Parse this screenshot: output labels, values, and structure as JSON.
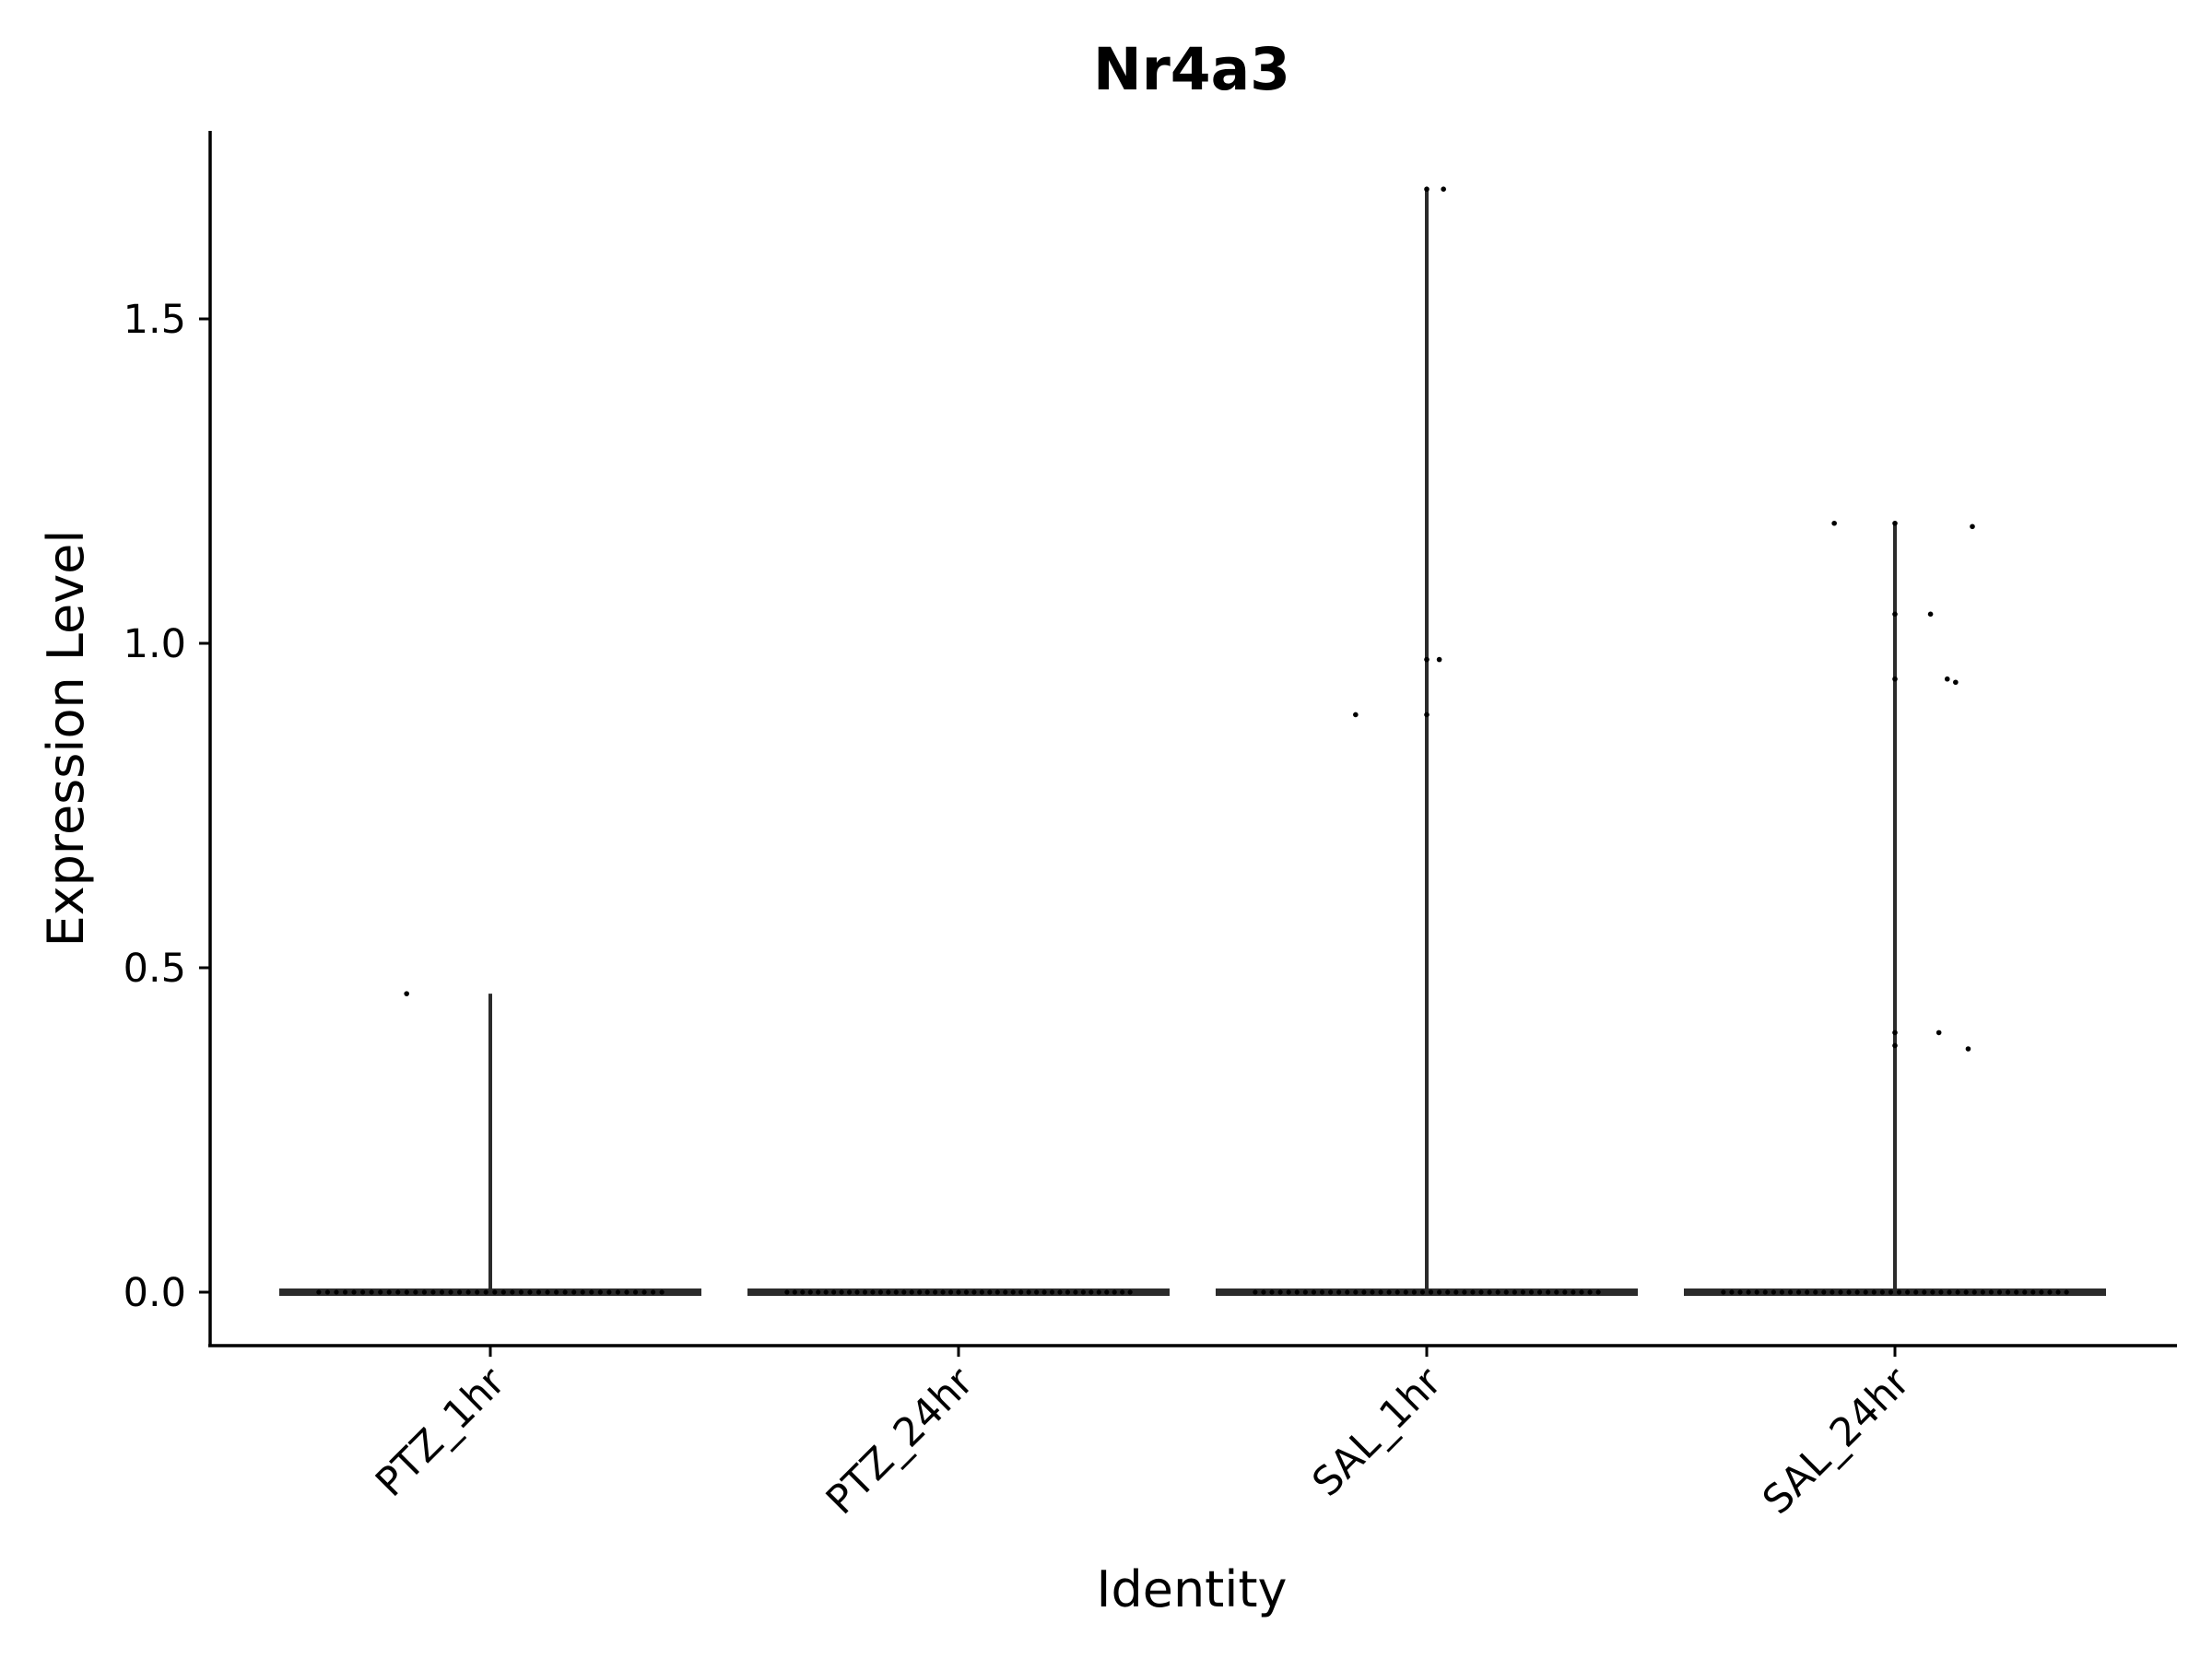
{
  "chart_data": {
    "type": "violin",
    "title": "Nr4a3",
    "xlabel": "Identity",
    "ylabel": "Expression Level",
    "ylim": [
      -0.08,
      1.77
    ],
    "yticks": [
      0.0,
      0.5,
      1.0,
      1.5
    ],
    "ytick_labels": [
      "0.0",
      "0.5",
      "1.0",
      "1.5"
    ],
    "categories": [
      "PTZ_1hr",
      "PTZ_24hr",
      "SAL_1hr",
      "SAL_24hr"
    ],
    "groups": [
      {
        "name": "PTZ_1hr",
        "max": 0.46,
        "outliers": [
          [
            -0.4,
            0.46
          ]
        ],
        "zero_points": 40
      },
      {
        "name": "PTZ_24hr",
        "max": 0.0,
        "outliers": [],
        "zero_points": 45
      },
      {
        "name": "SAL_1hr",
        "max": 1.7,
        "outliers": [
          [
            -0.34,
            0.89
          ],
          [
            0.0,
            0.89
          ],
          [
            0.0,
            0.975
          ],
          [
            0.06,
            0.975
          ],
          [
            0.0,
            1.7
          ],
          [
            0.08,
            1.7
          ]
        ],
        "zero_points": 42
      },
      {
        "name": "SAL_24hr",
        "max": 1.185,
        "outliers": [
          [
            -0.29,
            1.185
          ],
          [
            0.0,
            1.185
          ],
          [
            0.37,
            1.18
          ],
          [
            0.17,
            1.045
          ],
          [
            0.0,
            1.045
          ],
          [
            0.25,
            0.945
          ],
          [
            0.29,
            0.94
          ],
          [
            0.0,
            0.945
          ],
          [
            0.0,
            0.4
          ],
          [
            0.0,
            0.38
          ],
          [
            0.21,
            0.4
          ],
          [
            0.35,
            0.375
          ]
        ],
        "zero_points": 42
      }
    ]
  }
}
